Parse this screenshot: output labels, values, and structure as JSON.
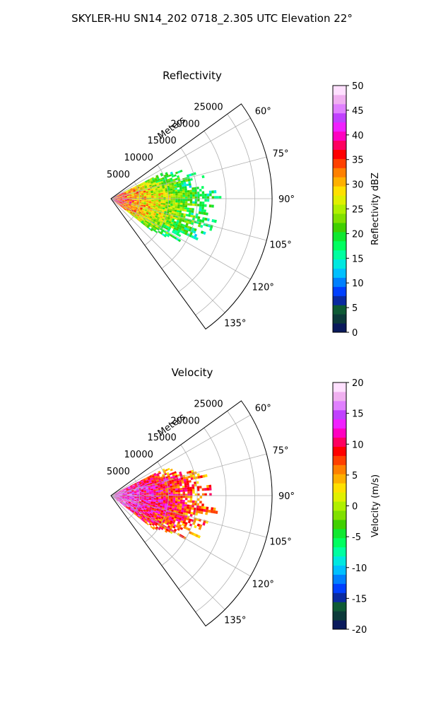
{
  "figure": {
    "suptitle": "SKYLER-HU  SN14_202  0718_2.305 UTC Elevation 22°"
  },
  "chart_data": [
    {
      "type": "heatmap",
      "projection": "polar-sector",
      "title": "Reflectivity",
      "range_axis_label": "Meters",
      "range_ticks": [
        5000,
        10000,
        15000,
        20000,
        25000
      ],
      "range_lim": [
        0,
        28000
      ],
      "azimuth_ticks": [
        "60°",
        "75°",
        "90°",
        "105°",
        "120°",
        "135°"
      ],
      "azimuth_values": [
        60,
        75,
        90,
        105,
        120,
        135
      ],
      "azimuth_lim": [
        54,
        144
      ],
      "grid": true,
      "colorbar": {
        "label": "Reflectivity dBZ",
        "ticks": [
          0,
          5,
          10,
          15,
          20,
          25,
          30,
          35,
          40,
          45,
          50
        ],
        "lim": [
          0,
          50
        ],
        "colors": [
          "#0a1a5c",
          "#0c3a3a",
          "#0e5a35",
          "#0a2aa0",
          "#0040ff",
          "#0080ff",
          "#00c0ff",
          "#00e8e0",
          "#00ffa0",
          "#00ff60",
          "#10e830",
          "#40d000",
          "#80e000",
          "#b0f000",
          "#e0f000",
          "#ffe000",
          "#ffb000",
          "#ff8000",
          "#ff4000",
          "#ff0000",
          "#ff0060",
          "#ff00c0",
          "#f020ff",
          "#c040ff",
          "#e080ff",
          "#f0b0f0",
          "#ffe0ff"
        ]
      },
      "echo": {
        "range_max": 18000,
        "az_start": 63,
        "az_end": 128,
        "core_value": 37,
        "edge_value": 16
      }
    },
    {
      "type": "heatmap",
      "projection": "polar-sector",
      "title": "Velocity",
      "range_axis_label": "Meters",
      "range_ticks": [
        5000,
        10000,
        15000,
        20000,
        25000
      ],
      "range_lim": [
        0,
        28000
      ],
      "azimuth_ticks": [
        "60°",
        "75°",
        "90°",
        "105°",
        "120°",
        "135°"
      ],
      "azimuth_values": [
        60,
        75,
        90,
        105,
        120,
        135
      ],
      "azimuth_lim": [
        54,
        144
      ],
      "grid": true,
      "colorbar": {
        "label": "Velocity (m/s)",
        "ticks": [
          -20,
          -15,
          -10,
          -5,
          0,
          5,
          10,
          15,
          20
        ],
        "lim": [
          -20,
          20
        ],
        "colors": [
          "#0a1a5c",
          "#0c3a3a",
          "#0e5a35",
          "#0a2aa0",
          "#0040ff",
          "#0080ff",
          "#00c0ff",
          "#00e8e0",
          "#00ffa0",
          "#00ff60",
          "#10e830",
          "#40d000",
          "#80e000",
          "#b0f000",
          "#e0f000",
          "#ffe000",
          "#ffb000",
          "#ff8000",
          "#ff4000",
          "#ff0000",
          "#ff0060",
          "#ff00c0",
          "#f020ff",
          "#c040ff",
          "#e080ff",
          "#f0b0f0",
          "#ffe0ff"
        ]
      },
      "echo": {
        "range_max": 18000,
        "az_start": 63,
        "az_end": 128,
        "core_value": 15,
        "edge_value": 6
      }
    }
  ]
}
